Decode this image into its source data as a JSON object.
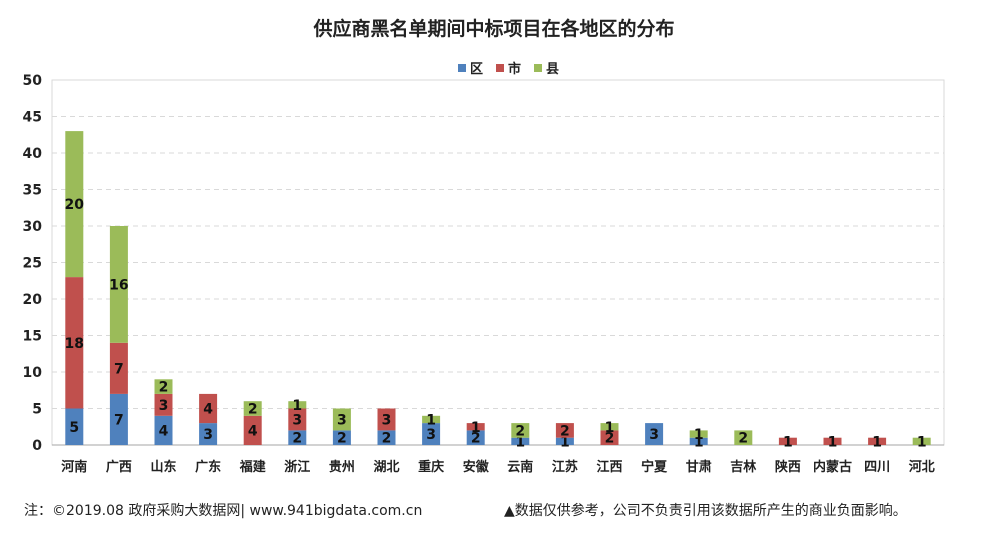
{
  "chart_data": {
    "type": "bar",
    "stacked": true,
    "title": "供应商黑名单期间中标项目在各地区的分布",
    "categories": [
      "河南",
      "广西",
      "山东",
      "广东",
      "福建",
      "浙江",
      "贵州",
      "湖北",
      "重庆",
      "安徽",
      "云南",
      "江苏",
      "江西",
      "宁夏",
      "甘肃",
      "吉林",
      "陕西",
      "内蒙古",
      "四川",
      "河北"
    ],
    "series": [
      {
        "name": "区",
        "color": "#4f81bd",
        "values": [
          5,
          7,
          4,
          3,
          0,
          2,
          2,
          2,
          3,
          2,
          1,
          1,
          0,
          3,
          1,
          0,
          0,
          0,
          0,
          0
        ]
      },
      {
        "name": "市",
        "color": "#c0504d",
        "values": [
          18,
          7,
          3,
          4,
          4,
          3,
          0,
          3,
          0,
          1,
          0,
          2,
          2,
          0,
          0,
          0,
          1,
          1,
          1,
          0
        ]
      },
      {
        "name": "县",
        "color": "#9bbb59",
        "values": [
          20,
          16,
          2,
          0,
          2,
          1,
          3,
          0,
          1,
          0,
          2,
          0,
          1,
          0,
          1,
          2,
          0,
          0,
          0,
          1
        ]
      }
    ],
    "ylim": [
      0,
      50
    ],
    "yticks": [
      0,
      5,
      10,
      15,
      20,
      25,
      30,
      35,
      40,
      45,
      50
    ],
    "grid": true,
    "legend_position": "top-center"
  },
  "footer": {
    "left": "注：©2019.08 政府采购大数据网| www.941bigdata.com.cn",
    "right": "▲数据仅供参考，公司不负责引用该数据所产生的商业负面影响。"
  }
}
